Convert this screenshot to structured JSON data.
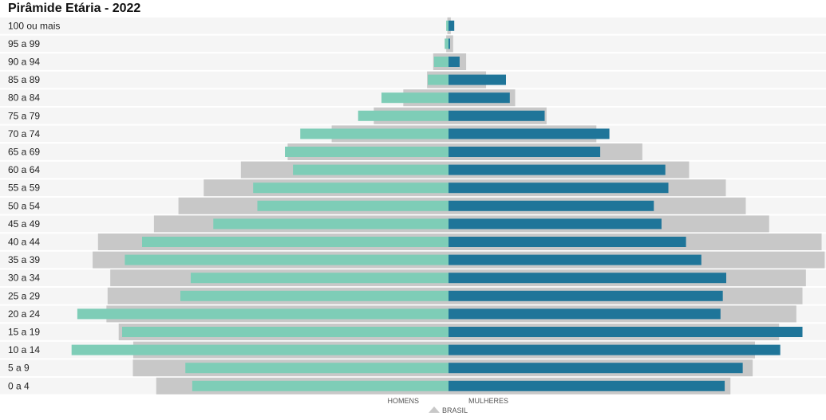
{
  "chart_data": {
    "type": "bar",
    "orientation": "horizontal",
    "title": "Pirâmide Etária - 2022",
    "categories": [
      "100 ou mais",
      "95 a 99",
      "90 a 94",
      "85 a 89",
      "80 a 84",
      "75 a 79",
      "70 a 74",
      "65 a 69",
      "60 a 64",
      "55 a 59",
      "50 a 54",
      "45 a 49",
      "40 a 44",
      "35 a 39",
      "30 a 34",
      "25 a 29",
      "20 a 24",
      "15 a 19",
      "10 a 14",
      "5 a 9",
      "0 a 4"
    ],
    "series": [
      {
        "name": "HOMENS",
        "side": "left",
        "values": [
          0.6,
          1.0,
          3.8,
          5.4,
          17.5,
          23.6,
          38.7,
          42.7,
          40.6,
          51.0,
          49.9,
          61.4,
          80.0,
          84.5,
          67.3,
          70.0,
          96.9,
          85.2,
          98.4,
          68.7,
          66.9
        ]
      },
      {
        "name": "MULHERES",
        "side": "right",
        "values": [
          1.5,
          0.4,
          2.9,
          15.0,
          16.0,
          25.1,
          42.0,
          39.6,
          56.6,
          57.4,
          53.6,
          55.6,
          62.0,
          66.0,
          72.5,
          71.6,
          71.0,
          92.4,
          86.6,
          76.8,
          72.1
        ]
      },
      {
        "name": "BRASIL",
        "type": "reference",
        "left_values": [
          0.3,
          0.6,
          4.0,
          5.6,
          11.8,
          19.5,
          30.5,
          42.0,
          54.2,
          63.9,
          70.5,
          76.9,
          91.5,
          92.9,
          88.3,
          89.0,
          89.3,
          86.1,
          82.3,
          82.4,
          76.3
        ],
        "right_values": [
          0.6,
          1.2,
          4.6,
          9.8,
          17.4,
          25.6,
          38.6,
          50.6,
          62.8,
          72.4,
          77.6,
          83.7,
          97.4,
          98.2,
          93.3,
          92.4,
          90.8,
          86.3,
          80.0,
          79.4,
          73.6
        ]
      }
    ],
    "xlim": [
      -100,
      100
    ],
    "grid": false,
    "legend": {
      "position": "bottom-center",
      "left_label": "HOMENS",
      "right_label": "MULHERES",
      "reference_label": "BRASIL"
    },
    "colors": {
      "homens": "#7ecdb7",
      "mulheres": "#1f7599",
      "brasil": "#c8c8c8",
      "stripe": "#f5f5f5"
    }
  }
}
